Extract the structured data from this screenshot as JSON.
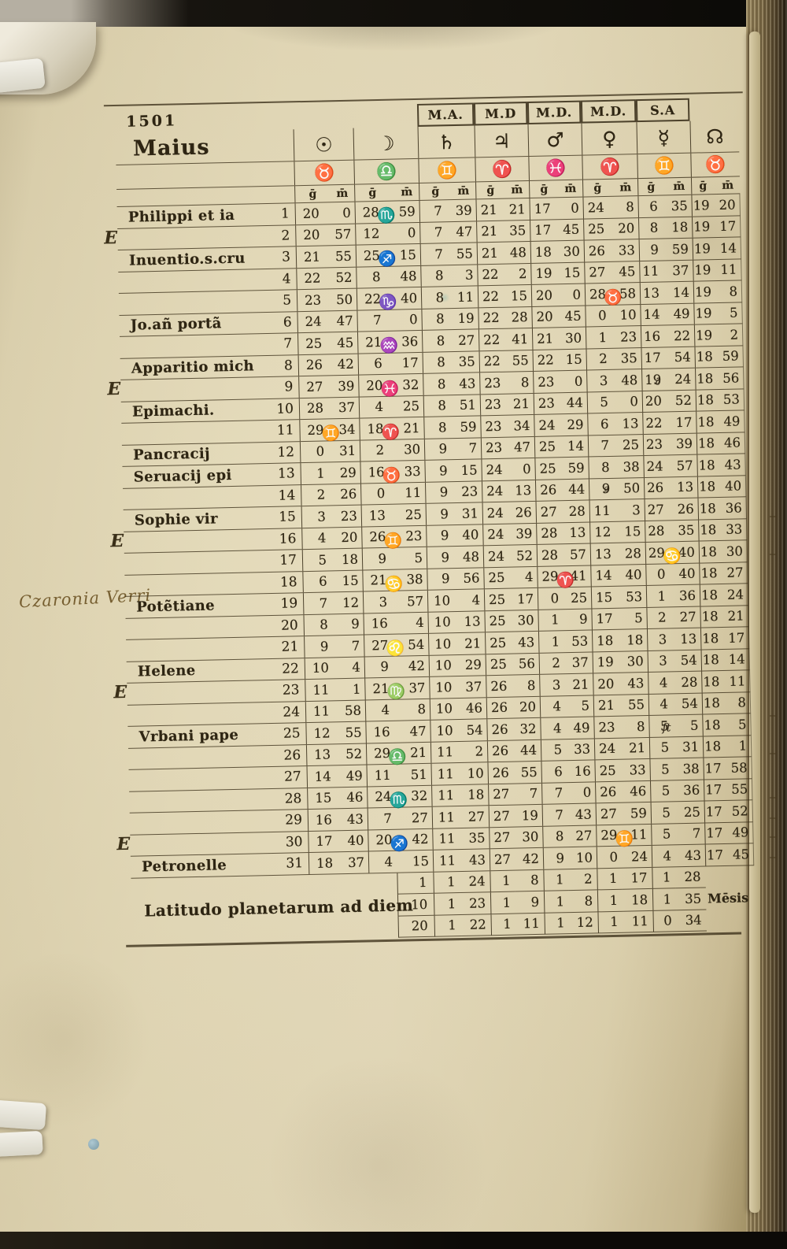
{
  "page": {
    "year": "1501",
    "month": "Maius",
    "header_boxes": [
      "M.A.",
      "M.D",
      "M.D.",
      "M.D.",
      "S.A"
    ],
    "gm_labels": {
      "g": "ḡ",
      "m": "m̄"
    },
    "week_marker": "E",
    "marginalia": "Czaronia Verri",
    "latitude_label": "Latitudo planetarum ad diem",
    "catchword": "Mēsis"
  },
  "glyphs": {
    "aries": "♈",
    "taurus": "♉",
    "gemini": "♊",
    "cancer": "♋",
    "leo": "♌",
    "virgo": "♍",
    "libra": "♎",
    "scorpio": "♏",
    "sagittarius": "♐",
    "capricorn": "♑",
    "aquarius": "♒",
    "pisces": "♓"
  },
  "columns": [
    {
      "key": "sun",
      "planet": "sun",
      "symbol": "☉",
      "sign": "♉"
    },
    {
      "key": "moon",
      "planet": "moon",
      "symbol": "☽",
      "sign": "♎"
    },
    {
      "key": "sat",
      "planet": "saturn",
      "symbol": "♄",
      "sign": "♊"
    },
    {
      "key": "jup",
      "planet": "jupiter",
      "symbol": "♃",
      "sign": "♈"
    },
    {
      "key": "mars",
      "planet": "mars",
      "symbol": "♂",
      "sign": "♓"
    },
    {
      "key": "ven",
      "planet": "venus",
      "symbol": "♀",
      "sign": "♈"
    },
    {
      "key": "mer",
      "planet": "mercury",
      "symbol": "☿",
      "sign": "♊"
    },
    {
      "key": "node",
      "planet": "dragons-head",
      "symbol": "☊",
      "sign": "♉"
    }
  ],
  "rows": [
    {
      "d": "1",
      "feast": "Philippi et ia",
      "sun": [
        "20",
        "0"
      ],
      "moon": [
        "28",
        "59"
      ],
      "moon_glyph": "scorpio",
      "sat": [
        "7",
        "39"
      ],
      "jup": [
        "21",
        "21"
      ],
      "mars": [
        "17",
        "0"
      ],
      "ven": [
        "24",
        "8"
      ],
      "mer": [
        "6",
        "35"
      ],
      "node": [
        "19",
        "20"
      ]
    },
    {
      "d": "2",
      "wk": true,
      "sun": [
        "20",
        "57"
      ],
      "moon": [
        "12",
        "0"
      ],
      "sat": [
        "7",
        "47"
      ],
      "jup": [
        "21",
        "35"
      ],
      "mars": [
        "17",
        "45"
      ],
      "ven": [
        "25",
        "20"
      ],
      "mer": [
        "8",
        "18"
      ],
      "node": [
        "19",
        "17"
      ]
    },
    {
      "d": "3",
      "feast": "Inuentio.s.cru",
      "sun": [
        "21",
        "55"
      ],
      "moon": [
        "25",
        "15"
      ],
      "moon_glyph": "sagittarius",
      "sat": [
        "7",
        "55"
      ],
      "jup": [
        "21",
        "48"
      ],
      "mars": [
        "18",
        "30"
      ],
      "ven": [
        "26",
        "33"
      ],
      "mer": [
        "9",
        "59"
      ],
      "node": [
        "19",
        "14"
      ]
    },
    {
      "d": "4",
      "sun": [
        "22",
        "52"
      ],
      "moon": [
        "8",
        "48"
      ],
      "sat": [
        "8",
        "3"
      ],
      "jup": [
        "22",
        "2"
      ],
      "mars": [
        "19",
        "15"
      ],
      "ven": [
        "27",
        "45"
      ],
      "mer": [
        "11",
        "37"
      ],
      "node": [
        "19",
        "11"
      ]
    },
    {
      "d": "5",
      "sun": [
        "23",
        "50"
      ],
      "moon": [
        "22",
        "40"
      ],
      "moon_glyph": "capricorn",
      "sat": [
        "8",
        "11"
      ],
      "jup": [
        "22",
        "15"
      ],
      "mars": [
        "20",
        "0"
      ],
      "ven": [
        "28",
        "58"
      ],
      "ven_glyph": "taurus",
      "mer": [
        "13",
        "14"
      ],
      "node": [
        "19",
        "8"
      ]
    },
    {
      "d": "6",
      "feast": "Jo.añ portã",
      "sun": [
        "24",
        "47"
      ],
      "moon": [
        "7",
        "0"
      ],
      "sat": [
        "8",
        "19"
      ],
      "jup": [
        "22",
        "28"
      ],
      "mars": [
        "20",
        "45"
      ],
      "ven": [
        "0",
        "10"
      ],
      "mer": [
        "14",
        "49"
      ],
      "node": [
        "19",
        "5"
      ]
    },
    {
      "d": "7",
      "sun": [
        "25",
        "45"
      ],
      "moon": [
        "21",
        "36"
      ],
      "moon_glyph": "aquarius",
      "sat": [
        "8",
        "27"
      ],
      "jup": [
        "22",
        "41"
      ],
      "mars": [
        "21",
        "30"
      ],
      "ven": [
        "1",
        "23"
      ],
      "mer": [
        "16",
        "22"
      ],
      "node": [
        "19",
        "2"
      ]
    },
    {
      "d": "8",
      "feast": "Apparitio mich",
      "sun": [
        "26",
        "42"
      ],
      "moon": [
        "6",
        "17"
      ],
      "sat": [
        "8",
        "35"
      ],
      "jup": [
        "22",
        "55"
      ],
      "mars": [
        "22",
        "15"
      ],
      "ven": [
        "2",
        "35"
      ],
      "mer": [
        "17",
        "54"
      ],
      "node": [
        "18",
        "59"
      ]
    },
    {
      "d": "9",
      "wk": true,
      "sun": [
        "27",
        "39"
      ],
      "moon": [
        "20",
        "32"
      ],
      "moon_glyph": "pisces",
      "sat": [
        "8",
        "43"
      ],
      "jup": [
        "23",
        "8"
      ],
      "mars": [
        "23",
        "0"
      ],
      "ven": [
        "3",
        "48"
      ],
      "mer": [
        "19",
        "24"
      ],
      "mer_mark": "∂",
      "node": [
        "18",
        "56"
      ]
    },
    {
      "d": "10",
      "feast": "Epimachi.",
      "sun": [
        "28",
        "37"
      ],
      "moon": [
        "4",
        "25"
      ],
      "sat": [
        "8",
        "51"
      ],
      "jup": [
        "23",
        "21"
      ],
      "mars": [
        "23",
        "44"
      ],
      "ven": [
        "5",
        "0"
      ],
      "mer": [
        "20",
        "52"
      ],
      "node": [
        "18",
        "53"
      ]
    },
    {
      "d": "11",
      "sun": [
        "29",
        "34"
      ],
      "sun_glyph": "gemini",
      "moon": [
        "18",
        "21"
      ],
      "moon_glyph": "aries",
      "sat": [
        "8",
        "59"
      ],
      "jup": [
        "23",
        "34"
      ],
      "mars": [
        "24",
        "29"
      ],
      "ven": [
        "6",
        "13"
      ],
      "mer": [
        "22",
        "17"
      ],
      "node": [
        "18",
        "49"
      ]
    },
    {
      "d": "12",
      "feast": "Pancracij",
      "sun": [
        "0",
        "31"
      ],
      "moon": [
        "2",
        "30"
      ],
      "sat": [
        "9",
        "7"
      ],
      "jup": [
        "23",
        "47"
      ],
      "mars": [
        "25",
        "14"
      ],
      "ven": [
        "7",
        "25"
      ],
      "mer": [
        "23",
        "39"
      ],
      "node": [
        "18",
        "46"
      ]
    },
    {
      "d": "13",
      "feast": "Seruacij epi",
      "sun": [
        "1",
        "29"
      ],
      "moon": [
        "16",
        "33"
      ],
      "moon_glyph": "taurus",
      "sat": [
        "9",
        "15"
      ],
      "jup": [
        "24",
        "0"
      ],
      "mars": [
        "25",
        "59"
      ],
      "ven": [
        "8",
        "38"
      ],
      "mer": [
        "24",
        "57"
      ],
      "node": [
        "18",
        "43"
      ]
    },
    {
      "d": "14",
      "sun": [
        "2",
        "26"
      ],
      "moon": [
        "0",
        "11"
      ],
      "sat": [
        "9",
        "23"
      ],
      "jup": [
        "24",
        "13"
      ],
      "mars": [
        "26",
        "44"
      ],
      "ven": [
        "9",
        "50"
      ],
      "ven_mark": "ª",
      "mer": [
        "26",
        "13"
      ],
      "node": [
        "18",
        "40"
      ]
    },
    {
      "d": "15",
      "feast": "Sophie vir",
      "sun": [
        "3",
        "23"
      ],
      "moon": [
        "13",
        "25"
      ],
      "sat": [
        "9",
        "31"
      ],
      "jup": [
        "24",
        "26"
      ],
      "mars": [
        "27",
        "28"
      ],
      "ven": [
        "11",
        "3"
      ],
      "mer": [
        "27",
        "26"
      ],
      "node": [
        "18",
        "36"
      ]
    },
    {
      "d": "16",
      "wk": true,
      "sun": [
        "4",
        "20"
      ],
      "moon": [
        "26",
        "23"
      ],
      "moon_glyph": "gemini",
      "sat": [
        "9",
        "40"
      ],
      "jup": [
        "24",
        "39"
      ],
      "mars": [
        "28",
        "13"
      ],
      "ven": [
        "12",
        "15"
      ],
      "mer": [
        "28",
        "35"
      ],
      "node": [
        "18",
        "33"
      ]
    },
    {
      "d": "17",
      "sun": [
        "5",
        "18"
      ],
      "moon": [
        "9",
        "5"
      ],
      "sat": [
        "9",
        "48"
      ],
      "jup": [
        "24",
        "52"
      ],
      "mars": [
        "28",
        "57"
      ],
      "ven": [
        "13",
        "28"
      ],
      "mer": [
        "29",
        "40"
      ],
      "mer_glyph": "cancer",
      "node": [
        "18",
        "30"
      ]
    },
    {
      "d": "18",
      "sun": [
        "6",
        "15"
      ],
      "moon": [
        "21",
        "38"
      ],
      "moon_glyph": "cancer",
      "sat": [
        "9",
        "56"
      ],
      "jup": [
        "25",
        "4"
      ],
      "mars": [
        "29",
        "41"
      ],
      "mars_glyph": "aries",
      "ven": [
        "14",
        "40"
      ],
      "mer": [
        "0",
        "40"
      ],
      "node": [
        "18",
        "27"
      ]
    },
    {
      "d": "19",
      "feast": "Potẽtiane",
      "sun": [
        "7",
        "12"
      ],
      "moon": [
        "3",
        "57"
      ],
      "sat": [
        "10",
        "4"
      ],
      "jup": [
        "25",
        "17"
      ],
      "mars": [
        "0",
        "25"
      ],
      "ven": [
        "15",
        "53"
      ],
      "mer": [
        "1",
        "36"
      ],
      "node": [
        "18",
        "24"
      ]
    },
    {
      "d": "20",
      "sun": [
        "8",
        "9"
      ],
      "moon": [
        "16",
        "4"
      ],
      "sat": [
        "10",
        "13"
      ],
      "jup": [
        "25",
        "30"
      ],
      "mars": [
        "1",
        "9"
      ],
      "ven": [
        "17",
        "5"
      ],
      "mer": [
        "2",
        "27"
      ],
      "node": [
        "18",
        "21"
      ]
    },
    {
      "d": "21",
      "sun": [
        "9",
        "7"
      ],
      "moon": [
        "27",
        "54"
      ],
      "moon_glyph": "leo",
      "sat": [
        "10",
        "21"
      ],
      "jup": [
        "25",
        "43"
      ],
      "mars": [
        "1",
        "53"
      ],
      "ven": [
        "18",
        "18"
      ],
      "mer": [
        "3",
        "13"
      ],
      "node": [
        "18",
        "17"
      ]
    },
    {
      "d": "22",
      "feast": "Helene",
      "sun": [
        "10",
        "4"
      ],
      "moon": [
        "9",
        "42"
      ],
      "sat": [
        "10",
        "29"
      ],
      "jup": [
        "25",
        "56"
      ],
      "mars": [
        "2",
        "37"
      ],
      "ven": [
        "19",
        "30"
      ],
      "mer": [
        "3",
        "54"
      ],
      "node": [
        "18",
        "14"
      ]
    },
    {
      "d": "23",
      "wk": true,
      "sun": [
        "11",
        "1"
      ],
      "moon": [
        "21",
        "37"
      ],
      "moon_glyph": "virgo",
      "sat": [
        "10",
        "37"
      ],
      "jup": [
        "26",
        "8"
      ],
      "mars": [
        "3",
        "21"
      ],
      "ven": [
        "20",
        "43"
      ],
      "mer": [
        "4",
        "28"
      ],
      "node": [
        "18",
        "11"
      ]
    },
    {
      "d": "24",
      "sun": [
        "11",
        "58"
      ],
      "moon": [
        "4",
        "8"
      ],
      "sat": [
        "10",
        "46"
      ],
      "jup": [
        "26",
        "20"
      ],
      "mars": [
        "4",
        "5"
      ],
      "ven": [
        "21",
        "55"
      ],
      "mer": [
        "4",
        "54"
      ],
      "node": [
        "18",
        "8"
      ]
    },
    {
      "d": "25",
      "feast": "Vrbani pape",
      "sun": [
        "12",
        "55"
      ],
      "moon": [
        "16",
        "47"
      ],
      "sat": [
        "10",
        "54"
      ],
      "jup": [
        "26",
        "32"
      ],
      "mars": [
        "4",
        "49"
      ],
      "ven": [
        "23",
        "8"
      ],
      "mer": [
        "5",
        "5"
      ],
      "mer_mark": "ſt",
      "node": [
        "18",
        "5"
      ]
    },
    {
      "d": "26",
      "sun": [
        "13",
        "52"
      ],
      "moon": [
        "29",
        "21"
      ],
      "moon_glyph": "libra",
      "sat": [
        "11",
        "2"
      ],
      "jup": [
        "26",
        "44"
      ],
      "mars": [
        "5",
        "33"
      ],
      "ven": [
        "24",
        "21"
      ],
      "mer": [
        "5",
        "31"
      ],
      "node": [
        "18",
        "1"
      ]
    },
    {
      "d": "27",
      "sun": [
        "14",
        "49"
      ],
      "moon": [
        "11",
        "51"
      ],
      "sat": [
        "11",
        "10"
      ],
      "jup": [
        "26",
        "55"
      ],
      "mars": [
        "6",
        "16"
      ],
      "ven": [
        "25",
        "33"
      ],
      "mer": [
        "5",
        "38"
      ],
      "node": [
        "17",
        "58"
      ]
    },
    {
      "d": "28",
      "sun": [
        "15",
        "46"
      ],
      "moon": [
        "24",
        "32"
      ],
      "moon_glyph": "scorpio",
      "sat": [
        "11",
        "18"
      ],
      "jup": [
        "27",
        "7"
      ],
      "mars": [
        "7",
        "0"
      ],
      "ven": [
        "26",
        "46"
      ],
      "mer": [
        "5",
        "36"
      ],
      "node": [
        "17",
        "55"
      ]
    },
    {
      "d": "29",
      "sun": [
        "16",
        "43"
      ],
      "moon": [
        "7",
        "27"
      ],
      "sat": [
        "11",
        "27"
      ],
      "jup": [
        "27",
        "19"
      ],
      "mars": [
        "7",
        "43"
      ],
      "ven": [
        "27",
        "59"
      ],
      "mer": [
        "5",
        "25"
      ],
      "node": [
        "17",
        "52"
      ]
    },
    {
      "d": "30",
      "wk": true,
      "sun": [
        "17",
        "40"
      ],
      "moon": [
        "20",
        "42"
      ],
      "moon_glyph": "sagittarius",
      "sat": [
        "11",
        "35"
      ],
      "jup": [
        "27",
        "30"
      ],
      "mars": [
        "8",
        "27"
      ],
      "ven": [
        "29",
        "11"
      ],
      "ven_glyph": "gemini",
      "mer": [
        "5",
        "7"
      ],
      "node": [
        "17",
        "49"
      ]
    },
    {
      "d": "31",
      "feast": "Petronelle",
      "sun": [
        "18",
        "37"
      ],
      "moon": [
        "4",
        "15"
      ],
      "sat": [
        "11",
        "43"
      ],
      "jup": [
        "27",
        "42"
      ],
      "mars": [
        "9",
        "10"
      ],
      "ven": [
        "0",
        "24"
      ],
      "mer": [
        "4",
        "43"
      ],
      "node": [
        "17",
        "45"
      ]
    }
  ],
  "latitude_rows": [
    {
      "day": "1",
      "pairs": [
        [
          "1",
          "24"
        ],
        [
          "1",
          "8"
        ],
        [
          "1",
          "2"
        ],
        [
          "1",
          "17"
        ],
        [
          "1",
          "28"
        ]
      ]
    },
    {
      "day": "10",
      "pairs": [
        [
          "1",
          "23"
        ],
        [
          "1",
          "9"
        ],
        [
          "1",
          "8"
        ],
        [
          "1",
          "18"
        ],
        [
          "1",
          "35"
        ]
      ],
      "catchword": true
    },
    {
      "day": "20",
      "pairs": [
        [
          "1",
          "22"
        ],
        [
          "1",
          "11"
        ],
        [
          "1",
          "12"
        ],
        [
          "1",
          "11"
        ],
        [
          "0",
          "34"
        ]
      ]
    }
  ]
}
